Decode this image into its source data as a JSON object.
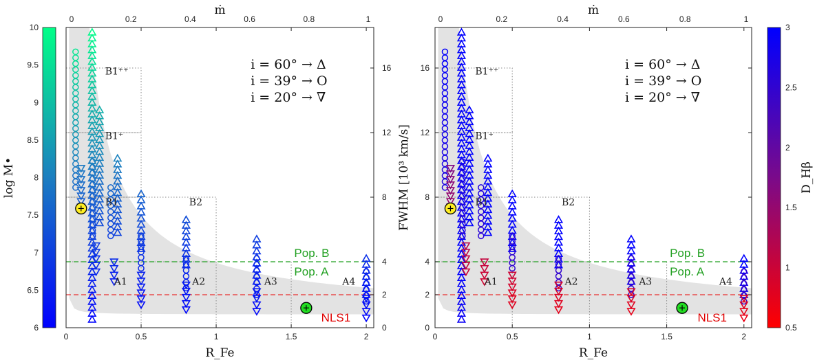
{
  "chart_data": [
    {
      "type": "scatter",
      "panel": "left",
      "xlabel": "R_Fe",
      "ylabel": "log M•",
      "top_xlabel": "ṁ",
      "right_ylabel": "",
      "x_ticks": [
        "0",
        "0.5",
        "1",
        "1.5",
        "2"
      ],
      "top_ticks": [
        "0",
        "0.2",
        "0.4",
        "0.6",
        "0.8",
        "1"
      ],
      "right_ticks": [
        "0",
        "2",
        "4",
        "8",
        "12",
        "16"
      ],
      "colorbar": {
        "min": 6,
        "max": 10,
        "ticks": [
          "6",
          "6.5",
          "7",
          "7.5",
          "8",
          "8.5",
          "9",
          "9.5",
          "10"
        ],
        "label": "log M•",
        "colors": [
          "#0000ff",
          "#00ff88"
        ]
      },
      "legend_lines": [
        "i = 60° → Δ",
        "i = 39° → O",
        "i = 20° → ∇"
      ],
      "regions": [
        "B1⁺⁺",
        "B1⁺",
        "B1",
        "B2",
        "A1",
        "A2",
        "A3",
        "A4"
      ],
      "pop_b": "Pop. B",
      "pop_a": "Pop. A",
      "nls1": "NLS1",
      "columns": [
        {
          "rfe": 0.1,
          "tri": [
            0.5,
            12.0,
            18.2
          ],
          "circ": [
            8.6,
            17.0
          ],
          "inv": [
            7.4,
            9.8
          ]
        },
        {
          "rfe": 0.2,
          "tri": [
            6.4,
            9.0,
            13.4
          ],
          "circ": [
            5.6,
            10.2
          ],
          "inv": [
            3.4,
            5.0
          ]
        },
        {
          "rfe": 0.32,
          "tri": [
            5.8,
            7.8,
            10.4
          ],
          "circ": [
            5.6,
            8.6
          ],
          "inv": [
            2.8,
            4.0
          ]
        },
        {
          "rfe": 0.5,
          "tri": [
            4.8,
            6.6,
            8.2
          ],
          "circ": [
            3.6,
            5.6
          ],
          "inv": [
            1.4,
            3.2
          ]
        },
        {
          "rfe": 0.8,
          "tri": [
            3.8,
            4.5,
            6.6
          ],
          "circ": [
            2.4,
            4.2
          ],
          "inv": [
            1.1,
            2.6
          ]
        },
        {
          "rfe": 1.27,
          "tri": [
            2.8,
            3.5,
            5.4
          ],
          "circ": [
            2.0,
            4.2
          ],
          "inv": [
            1.0,
            2.2
          ]
        },
        {
          "rfe": 2.0,
          "tri": [
            2.0,
            2.8,
            4.2
          ],
          "circ": [
            1.6,
            3.4
          ],
          "inv": [
            0.6,
            1.8
          ]
        }
      ],
      "sun_point": {
        "x": 0.1,
        "y": 7.3
      },
      "nls1_point": {
        "x": 1.6,
        "y": 1.2
      }
    },
    {
      "type": "scatter",
      "panel": "right",
      "xlabel": "R_Fe",
      "ylabel": "FWHM [10³ km/s]",
      "top_xlabel": "ṁ",
      "x_ticks": [
        "0",
        "0.5",
        "1",
        "1.5",
        "2"
      ],
      "y_ticks": [
        "0",
        "2",
        "4",
        "8",
        "12",
        "16"
      ],
      "top_ticks": [
        "0",
        "0.2",
        "0.4",
        "0.6",
        "0.8",
        "1"
      ],
      "colorbar": {
        "min": 0.5,
        "max": 3,
        "ticks": [
          "0.5",
          "1",
          "1.5",
          "2",
          "2.5",
          "3"
        ],
        "label": "D_Hβ",
        "colors": [
          "#ff0000",
          "#0000ff"
        ]
      },
      "legend_lines": [
        "i = 60° → Δ",
        "i = 39° → O",
        "i = 20° → ∇"
      ],
      "regions": [
        "B1⁺⁺",
        "B1⁺",
        "B1",
        "B2",
        "A1",
        "A2",
        "A3",
        "A4"
      ],
      "pop_b": "Pop. B",
      "pop_a": "Pop. A",
      "nls1": "NLS1"
    }
  ],
  "colors": {
    "pop_line": "#22a022",
    "nls1_line": "#e83030",
    "band": "#e3e3e3",
    "sun": "#ffee22",
    "nls1_marker": "#22dd22"
  }
}
